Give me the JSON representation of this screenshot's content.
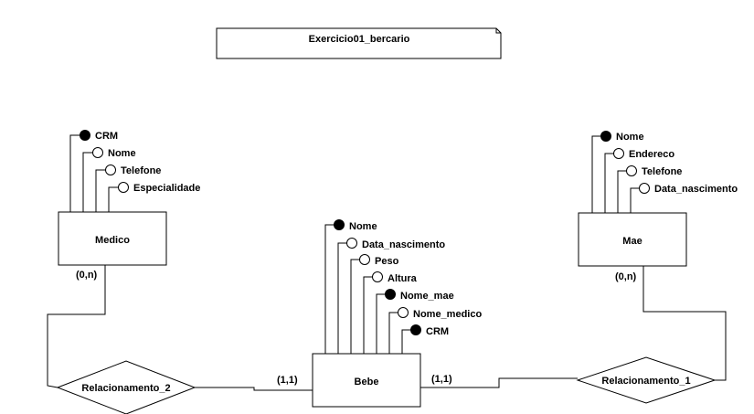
{
  "diagram": {
    "title": "Exercicio01_bercario",
    "entities": {
      "medico": {
        "name": "Medico",
        "attributes": [
          {
            "label": "CRM",
            "key": true
          },
          {
            "label": "Nome",
            "key": false
          },
          {
            "label": "Telefone",
            "key": false
          },
          {
            "label": "Especialidade",
            "key": false
          }
        ]
      },
      "bebe": {
        "name": "Bebe",
        "attributes": [
          {
            "label": "Nome",
            "key": true
          },
          {
            "label": "Data_nascimento",
            "key": false
          },
          {
            "label": "Peso",
            "key": false
          },
          {
            "label": "Altura",
            "key": false
          },
          {
            "label": "Nome_mae",
            "key": true
          },
          {
            "label": "Nome_medico",
            "key": false
          },
          {
            "label": "CRM",
            "key": true
          }
        ]
      },
      "mae": {
        "name": "Mae",
        "attributes": [
          {
            "label": "Nome",
            "key": true
          },
          {
            "label": "Endereco",
            "key": false
          },
          {
            "label": "Telefone",
            "key": false
          },
          {
            "label": "Data_nascimento",
            "key": false
          }
        ]
      }
    },
    "relationships": {
      "rel2": {
        "name": "Relacionamento_2"
      },
      "rel1": {
        "name": "Relacionamento_1"
      }
    },
    "cardinalities": {
      "medico": "(0,n)",
      "mae": "(0,n)",
      "bebe_left": "(1,1)",
      "bebe_right": "(1,1)"
    }
  }
}
